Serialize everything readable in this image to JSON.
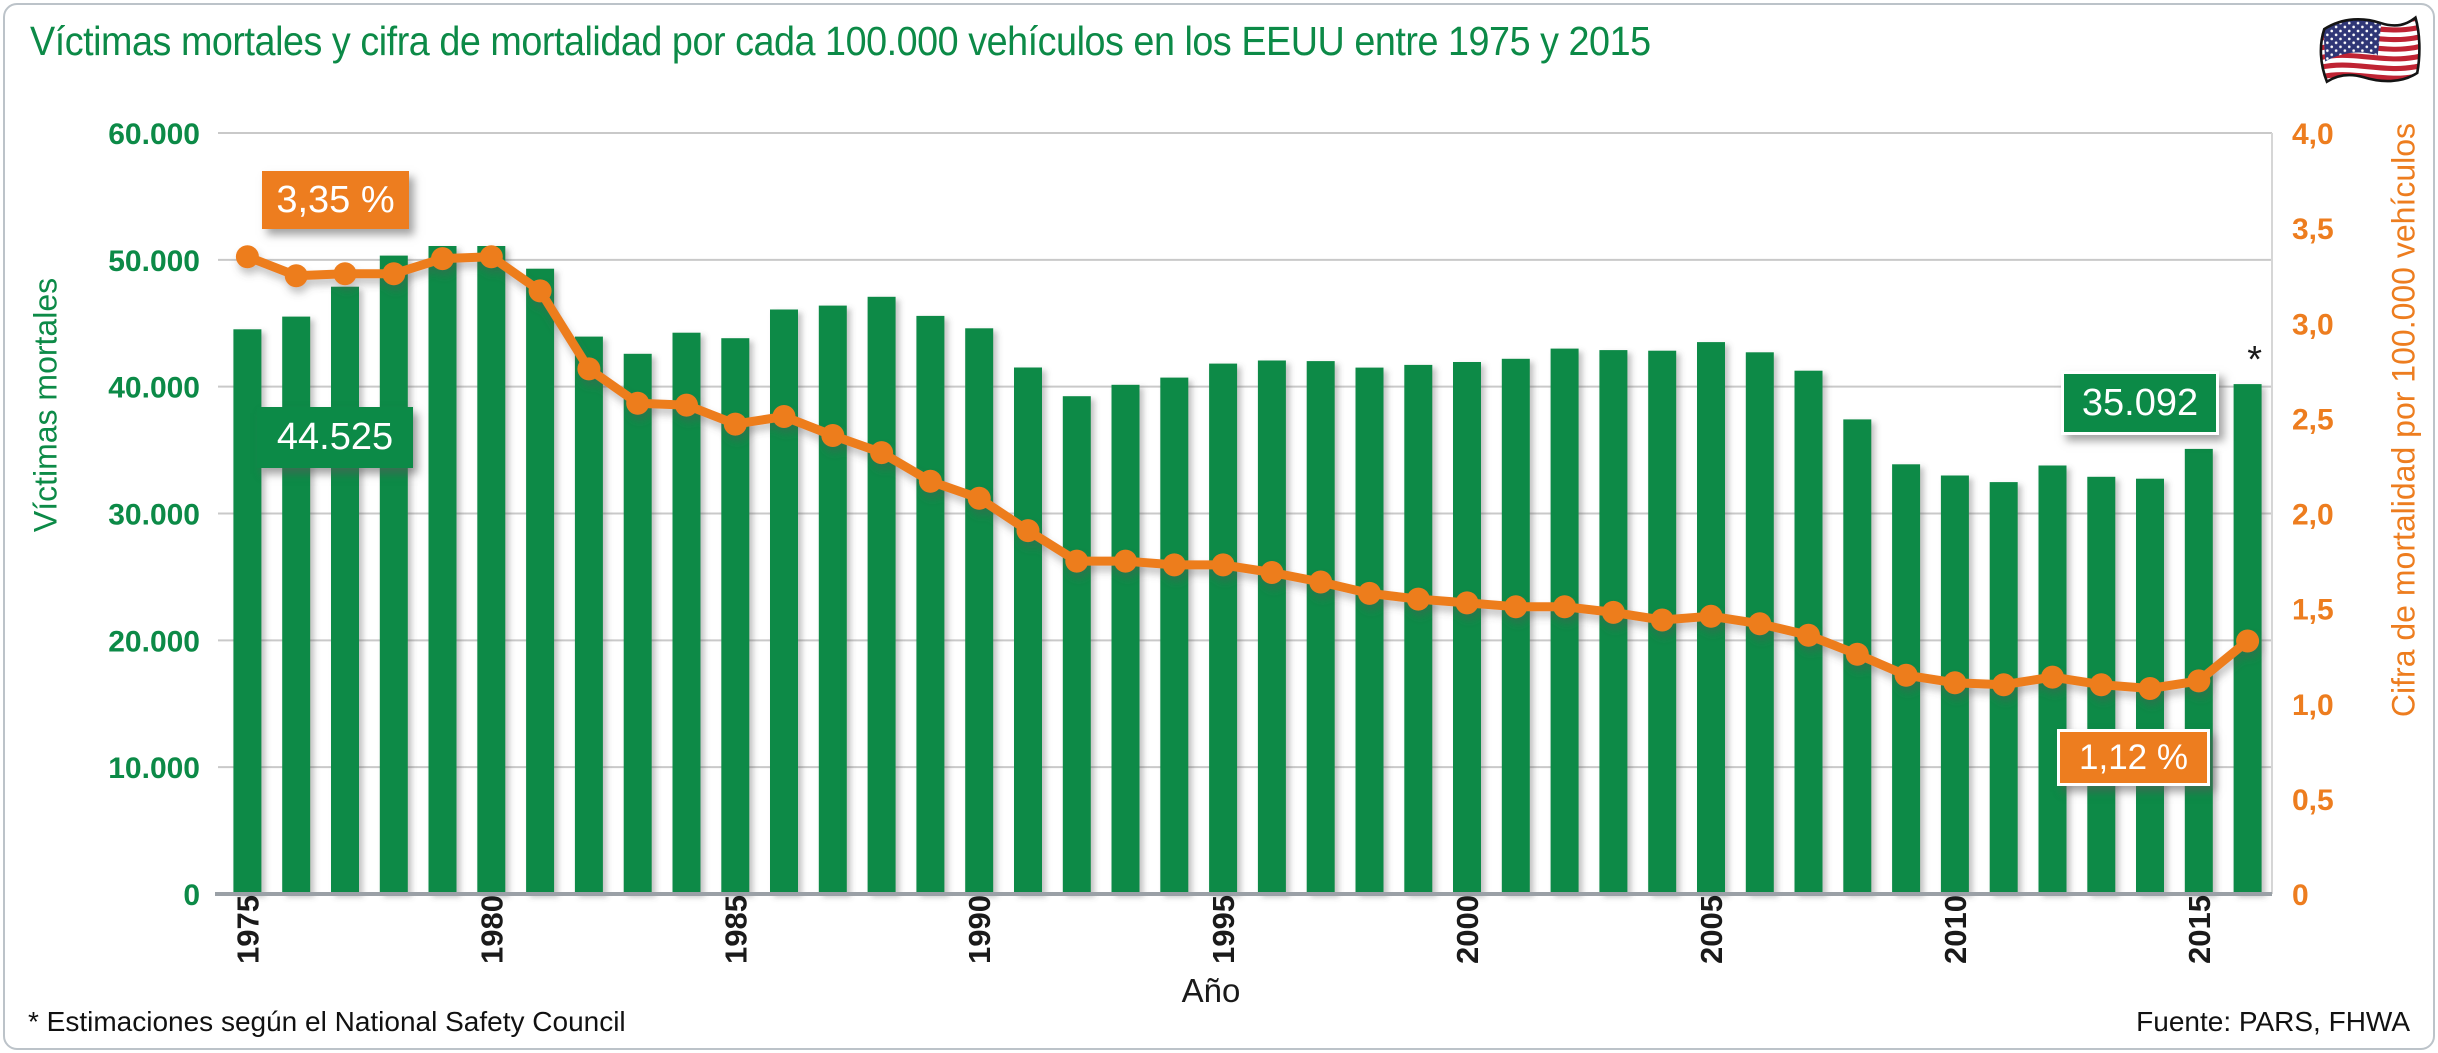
{
  "page": {
    "title": "Víctimas mortales y cifra de mortalidad por cada 100.000 vehículos en los EEUU entre 1975 y 2015",
    "footnote": "* Estimaciones según el National Safety Council",
    "source": "Fuente: PARS, FHWA",
    "flag_icon": "us-flag"
  },
  "chart_data": {
    "type": "bar",
    "title": "Víctimas mortales y cifra de mortalidad por cada 100.000 vehículos en los EEUU entre 1975 y 2015",
    "xlabel": "Año",
    "legend": "none",
    "grid": true,
    "x": [
      1975,
      1976,
      1977,
      1978,
      1979,
      1980,
      1981,
      1982,
      1983,
      1984,
      1985,
      1986,
      1987,
      1988,
      1989,
      1990,
      1991,
      1992,
      1993,
      1994,
      1995,
      1996,
      1997,
      1998,
      1999,
      2000,
      2001,
      2002,
      2003,
      2004,
      2005,
      2006,
      2007,
      2008,
      2009,
      2010,
      2011,
      2012,
      2013,
      2014,
      2015,
      2016
    ],
    "x_tick_labels": [
      "1975",
      "1980",
      "1985",
      "1990",
      "1995",
      "2000",
      "2005",
      "2010",
      "2015"
    ],
    "series": [
      {
        "name": "Víctimas mortales",
        "type": "bar",
        "axis": "left",
        "color": "#0C8A47",
        "values": [
          44525,
          45523,
          47878,
          50331,
          51093,
          51091,
          49301,
          43945,
          42589,
          44257,
          43825,
          46087,
          46390,
          47087,
          45582,
          44599,
          41508,
          39250,
          40150,
          40716,
          41817,
          42065,
          42013,
          41501,
          41717,
          41945,
          42196,
          43005,
          42884,
          42836,
          43510,
          42708,
          41259,
          37423,
          33883,
          32999,
          32479,
          33782,
          32894,
          32744,
          35092,
          40200
        ]
      },
      {
        "name": "Cifra de mortalidad por 100.000 vehículos",
        "type": "line",
        "axis": "right",
        "color": "#ED7D1F",
        "values": [
          3.35,
          3.25,
          3.26,
          3.26,
          3.34,
          3.35,
          3.17,
          2.76,
          2.58,
          2.57,
          2.47,
          2.51,
          2.41,
          2.32,
          2.17,
          2.08,
          1.91,
          1.75,
          1.75,
          1.73,
          1.73,
          1.69,
          1.64,
          1.58,
          1.55,
          1.53,
          1.51,
          1.51,
          1.48,
          1.44,
          1.46,
          1.42,
          1.36,
          1.26,
          1.15,
          1.11,
          1.1,
          1.14,
          1.1,
          1.08,
          1.12,
          1.33
        ]
      }
    ],
    "left_axis": {
      "label": "Víctimas mortales",
      "min": 0,
      "max": 60000,
      "tick_values": [
        0,
        10000,
        20000,
        30000,
        40000,
        50000,
        60000
      ],
      "tick_labels": [
        "0",
        "10.000",
        "20.000",
        "30.000",
        "40.000",
        "50.000",
        "60.000"
      ],
      "color": "#0C8A47"
    },
    "right_axis": {
      "label": "Cifra de mortalidad por 100.000 vehículos",
      "min": 0,
      "max": 4,
      "tick_values": [
        0,
        0.5,
        1,
        1.5,
        2,
        2.5,
        3,
        3.5,
        4
      ],
      "tick_labels": [
        "0",
        "0,5",
        "1,0",
        "1,5",
        "2,0",
        "2,5",
        "3,0",
        "3,5",
        "4,0"
      ],
      "color": "#ED7D1F"
    },
    "annotations": {
      "rate_start": "3,35 %",
      "fatalities_start": "44.525",
      "fatalities_end": "35.092",
      "rate_end": "1,12 %",
      "asterisk": "*"
    },
    "colors": {
      "green": "#0C8A47",
      "orange": "#ED7D1F",
      "grid": "#C9C9C9",
      "axis_line": "#9AA0A6",
      "text": "#1A1A1A"
    }
  }
}
